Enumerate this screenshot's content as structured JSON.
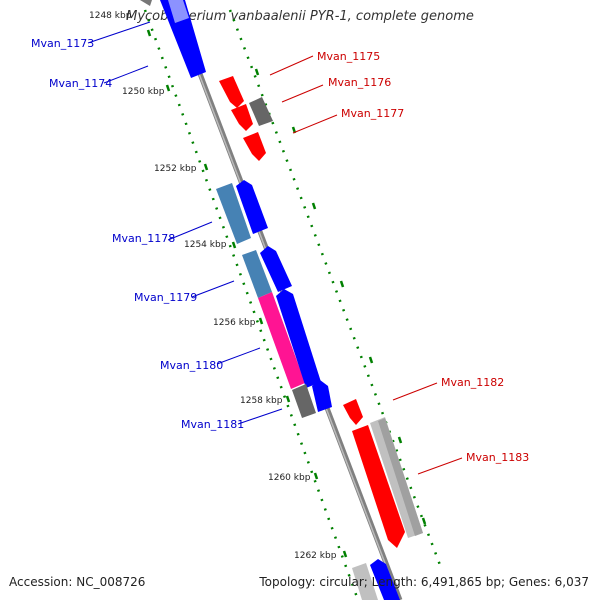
{
  "title": "Mycobacterium vanbaalenii PYR-1, complete genome",
  "footer": {
    "accession": "Accession: NC_008726",
    "stats": "Topology: circular; Length: 6,491,865 bp; Genes: 6,037"
  },
  "ticks": [
    "1248 kbp",
    "1250 kbp",
    "1252 kbp",
    "1254 kbp",
    "1256 kbp",
    "1258 kbp",
    "1260 kbp",
    "1262 kbp"
  ],
  "colors": {
    "backbone": "#888888",
    "forward_gene": "#0000ff",
    "reverse_gene": "#ff0000",
    "pseudo_gray": "#666666",
    "light_gray": "#c0c0c0",
    "steel_blue": "#4682b4",
    "pink": "#ff1493",
    "tick_green": "#008000",
    "label_blue": "#0000cc",
    "label_red": "#cc0000"
  },
  "genes_forward": [
    "Mvan_1173",
    "Mvan_1174",
    "Mvan_1178",
    "Mvan_1179",
    "Mvan_1180",
    "Mvan_1181"
  ],
  "genes_reverse": [
    "Mvan_1175",
    "Mvan_1176",
    "Mvan_1177",
    "Mvan_1182",
    "Mvan_1183"
  ]
}
